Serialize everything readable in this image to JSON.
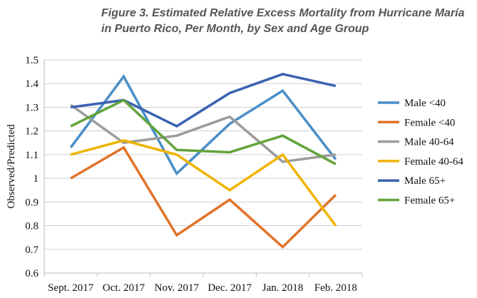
{
  "chart_data": {
    "type": "line",
    "title": "Figure 3. Estimated Relative Excess Mortality from Hurricane María in Puerto Rico, Per Month, by Sex and Age Group",
    "xlabel": "",
    "ylabel": "Observed/Predicted",
    "ylim": [
      0.6,
      1.5
    ],
    "yticks": [
      "0.6",
      "0.7",
      "0.8",
      "0.9",
      "1",
      "1.1",
      "1.2",
      "1.3",
      "1.4",
      "1.5"
    ],
    "grid": true,
    "legend": "right",
    "categories": [
      "Sept. 2017",
      "Oct. 2017",
      "Nov. 2017",
      "Dec. 2017",
      "Jan. 2018",
      "Feb. 2018"
    ],
    "series": [
      {
        "name": "Male <40",
        "color": "#4a8ec9",
        "values": [
          1.13,
          1.43,
          1.02,
          1.23,
          1.37,
          1.08
        ]
      },
      {
        "name": "Female <40",
        "color": "#e0742a",
        "values": [
          1.0,
          1.13,
          0.76,
          0.91,
          0.71,
          0.93
        ]
      },
      {
        "name": "Male 40-64",
        "color": "#9c9c9c",
        "values": [
          1.31,
          1.15,
          1.18,
          1.26,
          1.07,
          1.1
        ]
      },
      {
        "name": "Female 40-64",
        "color": "#f0b400",
        "values": [
          1.1,
          1.16,
          1.1,
          0.95,
          1.1,
          0.8
        ]
      },
      {
        "name": "Male 65+",
        "color": "#3a62b0",
        "values": [
          1.3,
          1.33,
          1.22,
          1.36,
          1.44,
          1.39
        ]
      },
      {
        "name": "Female 65+",
        "color": "#62a43c",
        "values": [
          1.22,
          1.33,
          1.12,
          1.11,
          1.18,
          1.06
        ]
      }
    ]
  }
}
